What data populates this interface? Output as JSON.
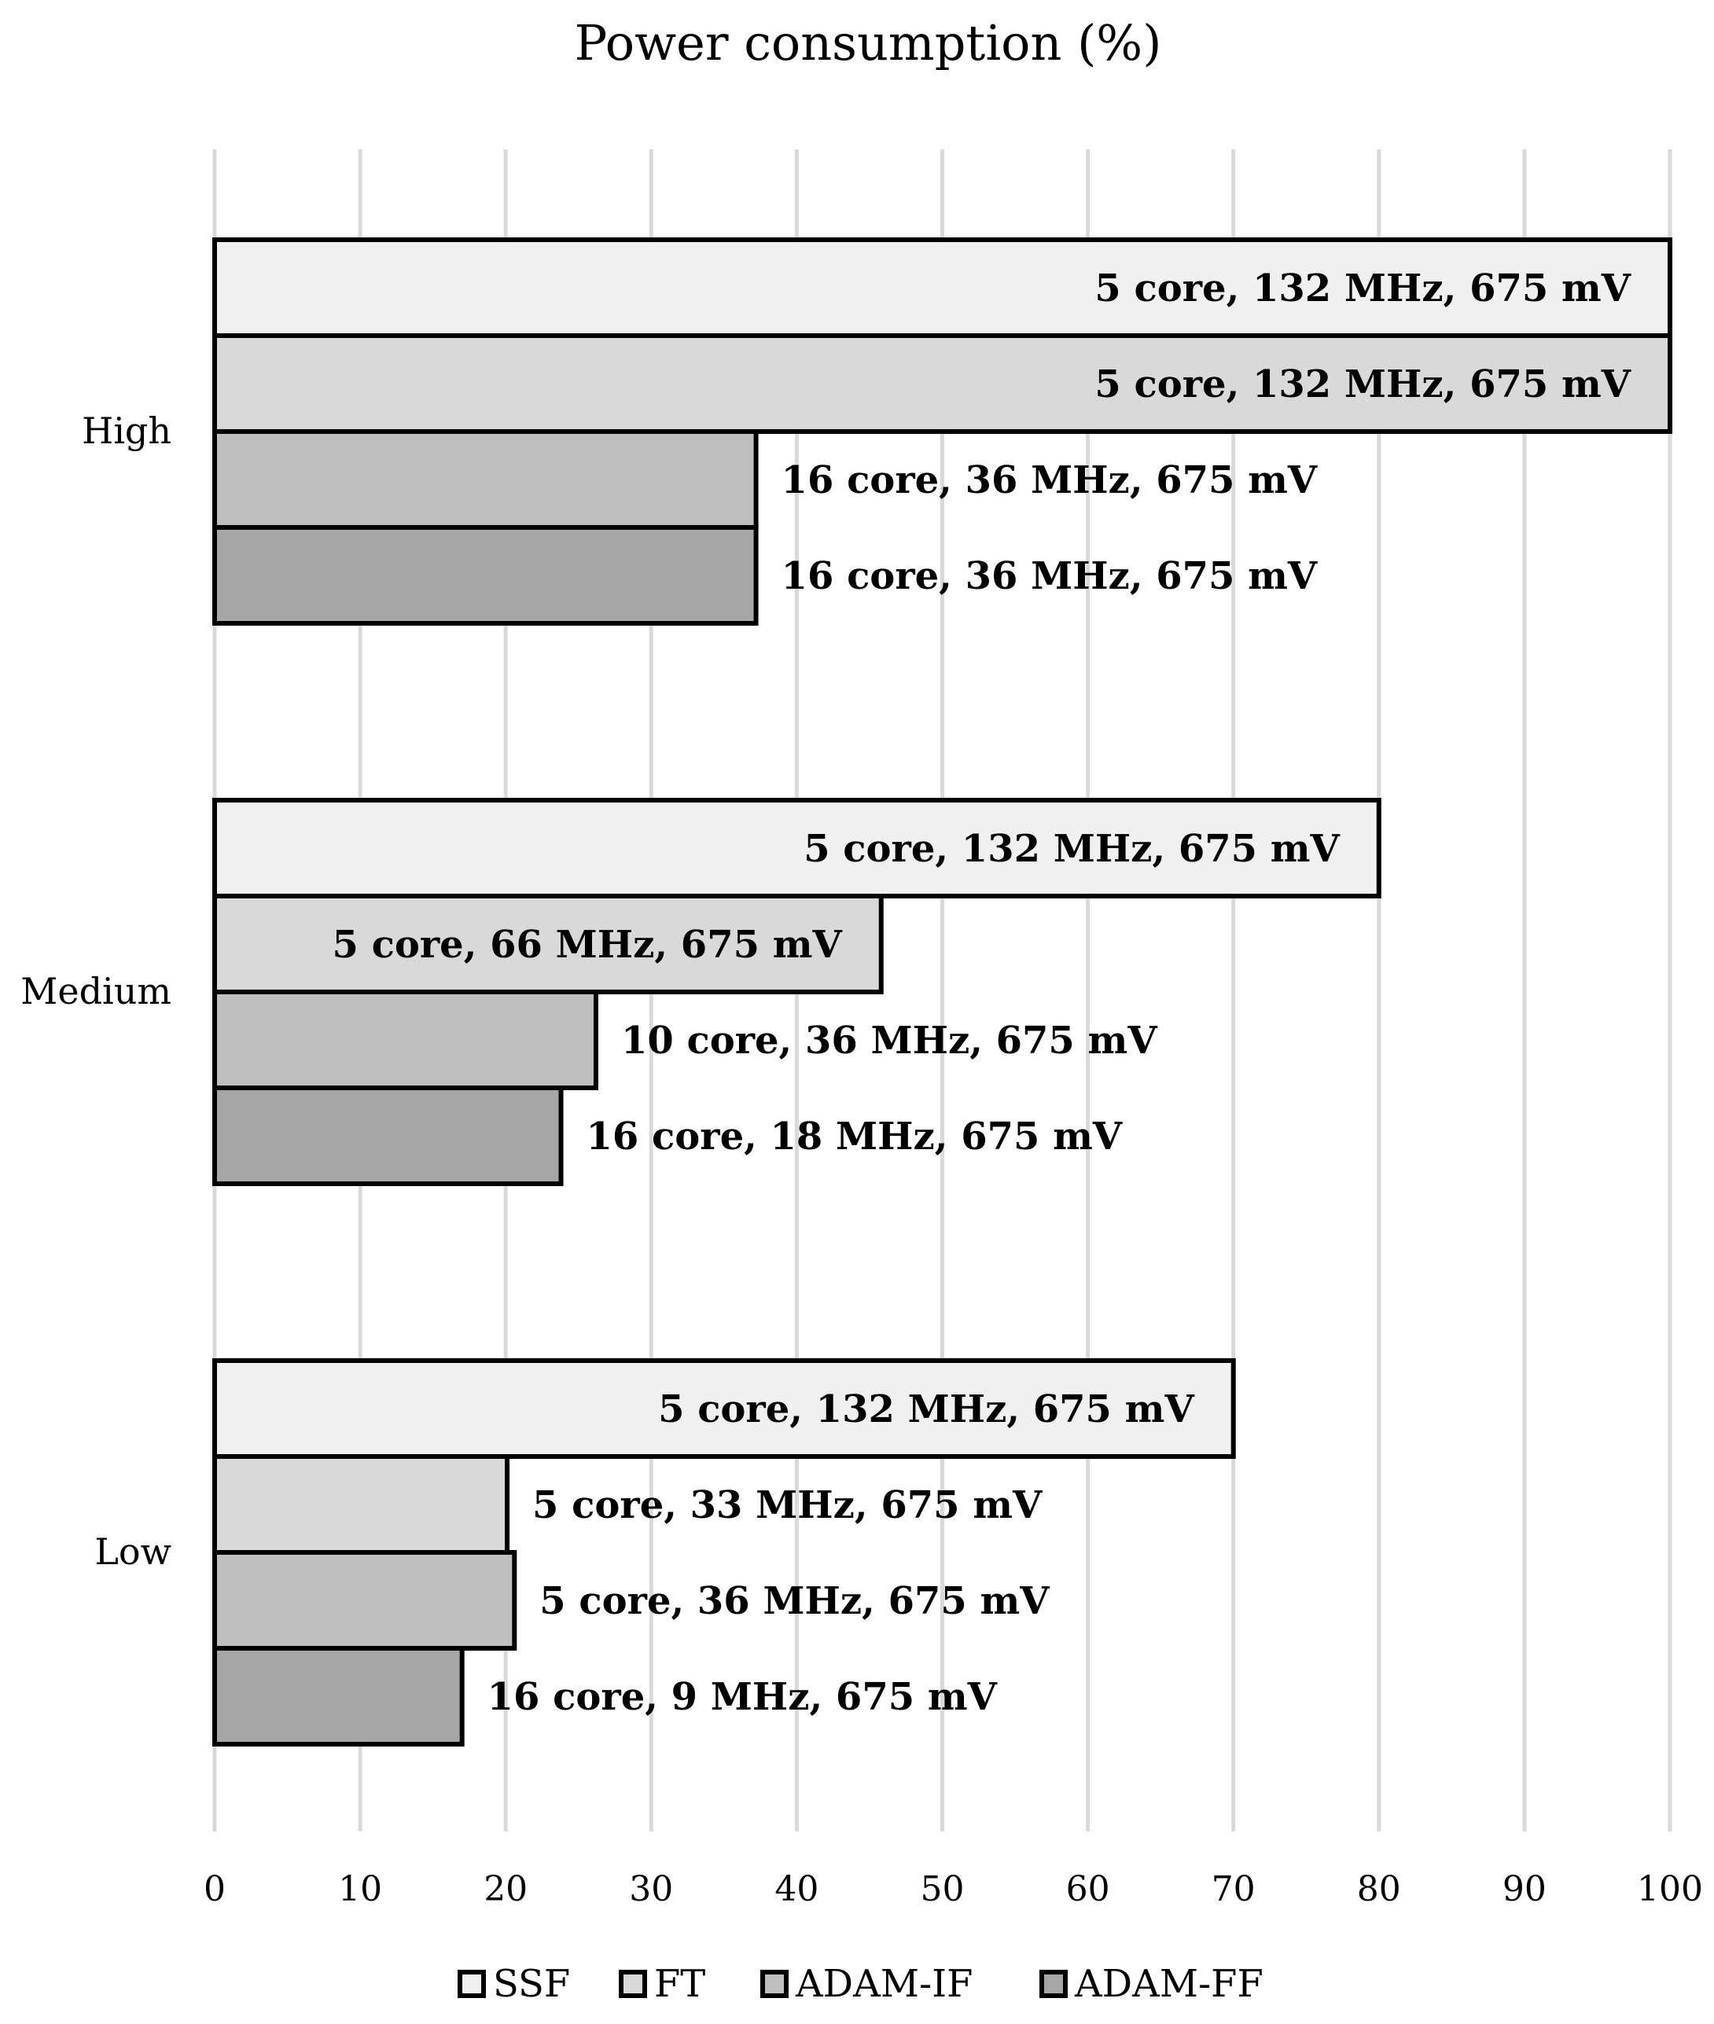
{
  "chart_data": {
    "type": "bar",
    "orientation": "horizontal",
    "title": "Power consumption (%)",
    "xlabel": "",
    "ylabel": "",
    "xlim": [
      0,
      100
    ],
    "x_ticks": [
      0,
      10,
      20,
      30,
      40,
      50,
      60,
      70,
      80,
      90,
      100
    ],
    "grid": true,
    "legend_position": "bottom",
    "categories": [
      "High",
      "Medium",
      "Low"
    ],
    "series": [
      {
        "name": "SSF",
        "color": "#f0f0f0",
        "values": [
          100,
          80,
          70
        ],
        "labels": [
          "5 core, 132 MHz, 675 mV",
          "5 core, 132 MHz, 675 mV",
          "5 core, 132 MHz, 675 mV"
        ]
      },
      {
        "name": "FT",
        "color": "#d9d9d9",
        "values": [
          100,
          45.8,
          20.1
        ],
        "labels": [
          "5 core, 132 MHz, 675 mV",
          "5 core, 66 MHz, 675 mV",
          "5 core, 33 MHz, 675 mV"
        ]
      },
      {
        "name": "ADAM-IF",
        "color": "#bfbfbf",
        "values": [
          37.2,
          26.2,
          20.6
        ],
        "labels": [
          "16 core, 36 MHz, 675 mV",
          "10 core, 36 MHz, 675 mV",
          "5 core, 36 MHz, 675 mV"
        ]
      },
      {
        "name": "ADAM-FF",
        "color": "#a6a6a6",
        "values": [
          37.2,
          23.8,
          17.0
        ],
        "labels": [
          "16 core, 36 MHz, 675 mV",
          "16 core, 18 MHz, 675 mV",
          "16 core, 9 MHz, 675 mV"
        ]
      }
    ]
  }
}
